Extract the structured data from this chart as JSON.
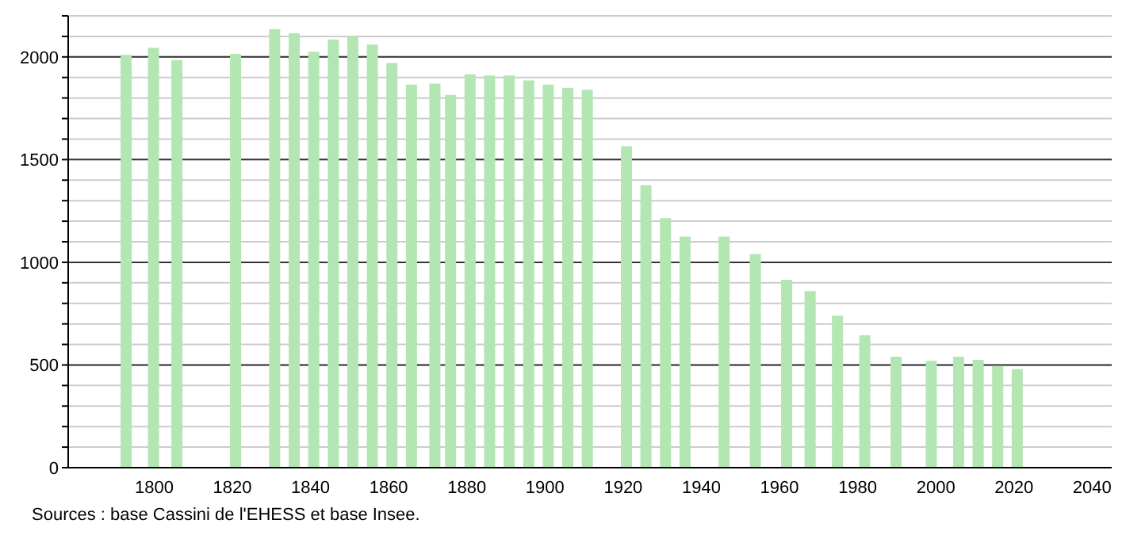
{
  "chart_data": {
    "type": "bar",
    "annotations": [
      "Sources : base Cassini de l'EHESS et base Insee."
    ],
    "x": [
      1793,
      1800,
      1806,
      1821,
      1831,
      1836,
      1841,
      1846,
      1851,
      1856,
      1861,
      1866,
      1872,
      1876,
      1881,
      1886,
      1891,
      1896,
      1901,
      1906,
      1911,
      1921,
      1926,
      1931,
      1936,
      1946,
      1954,
      1962,
      1968,
      1975,
      1982,
      1990,
      1999,
      2006,
      2011,
      2016,
      2021
    ],
    "values": [
      2010,
      2045,
      1985,
      2015,
      2135,
      2115,
      2025,
      2085,
      2100,
      2060,
      1970,
      1865,
      1870,
      1815,
      1915,
      1910,
      1910,
      1885,
      1865,
      1850,
      1840,
      1565,
      1375,
      1215,
      1125,
      1125,
      1040,
      915,
      860,
      740,
      645,
      540,
      520,
      540,
      525,
      495,
      480
    ],
    "color": "#b3e6b3",
    "xlim": [
      1778,
      2045
    ],
    "xticks": [
      1800,
      1820,
      1840,
      1860,
      1880,
      1900,
      1920,
      1940,
      1960,
      1980,
      2000,
      2020,
      2040
    ],
    "ylim": [
      0,
      2200
    ],
    "yticks": [
      0,
      {
        "value": 100,
        "label": null
      },
      {
        "value": 200,
        "label": null
      },
      {
        "value": 300,
        "label": null
      },
      {
        "value": 400,
        "label": null
      },
      500,
      {
        "value": 600,
        "label": null
      },
      {
        "value": 700,
        "label": null
      },
      {
        "value": 800,
        "label": null
      },
      {
        "value": 900,
        "label": null
      },
      1000,
      {
        "value": 1100,
        "label": null
      },
      {
        "value": 1200,
        "label": null
      },
      {
        "value": 1300,
        "label": null
      },
      {
        "value": 1400,
        "label": null
      },
      1500,
      {
        "value": 1600,
        "label": null
      },
      {
        "value": 1700,
        "label": null
      },
      {
        "value": 1800,
        "label": null
      },
      {
        "value": 1900,
        "label": null
      },
      2000,
      {
        "value": 2100,
        "label": null
      },
      {
        "value": 2200,
        "label": null
      }
    ],
    "grid": "y",
    "legend": false
  }
}
